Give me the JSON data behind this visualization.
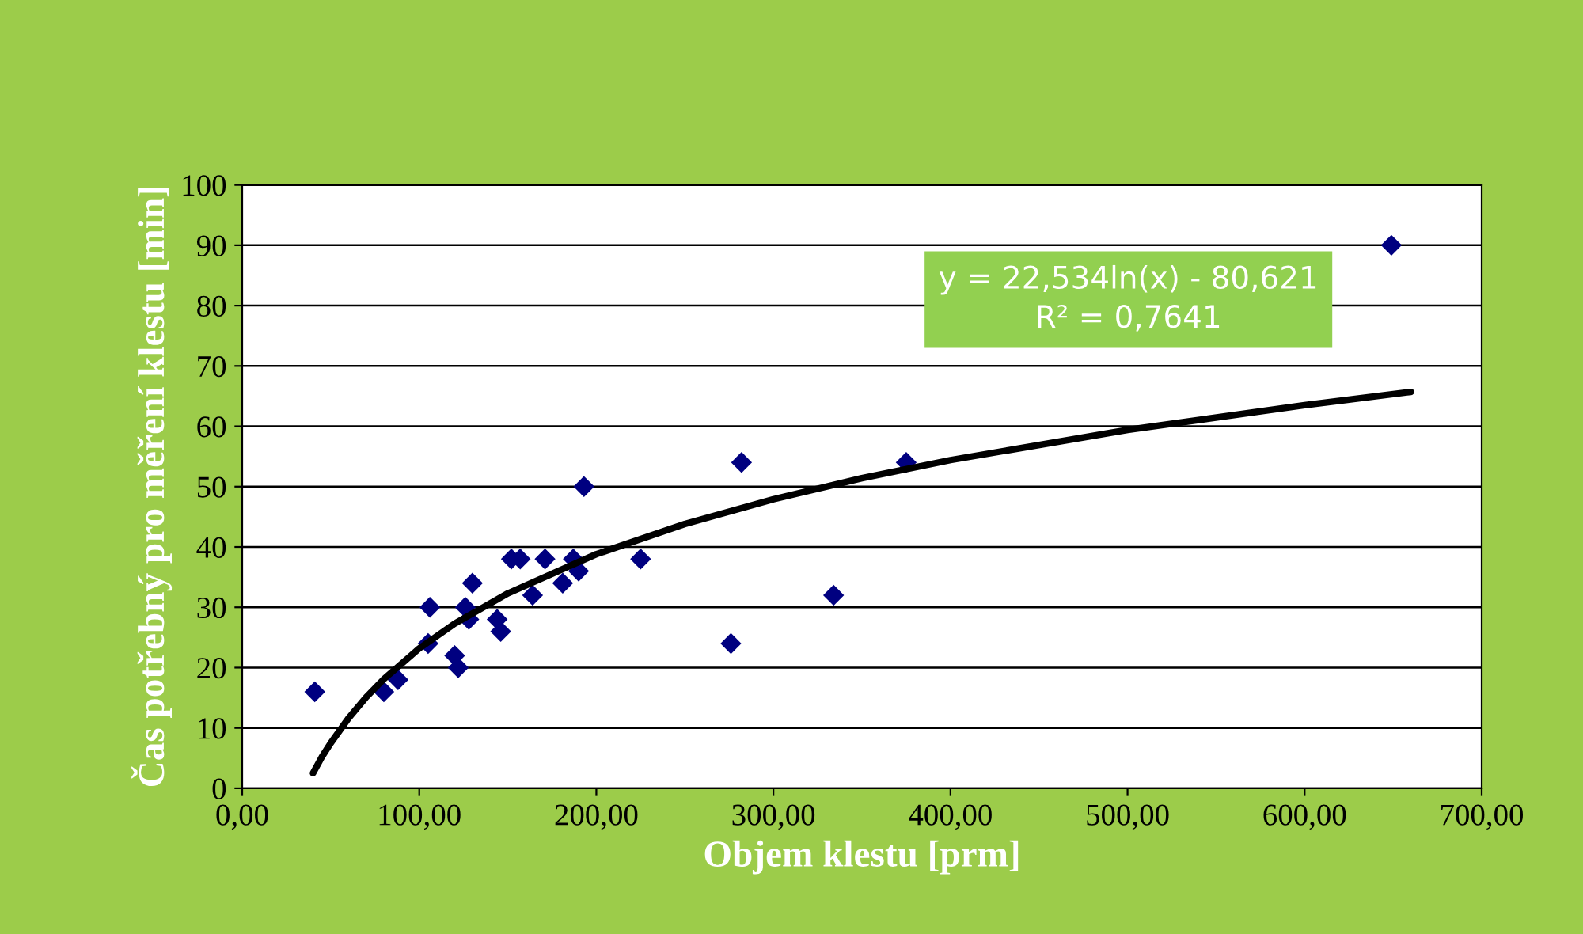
{
  "chart_data": {
    "type": "scatter",
    "xlabel": "Objem klestu [prm]",
    "ylabel": "Čas potřebný pro měření klestu [min]",
    "series": [
      {
        "color": "#000080",
        "marker": "diamond",
        "x": [
          41,
          80,
          88,
          105,
          106,
          120,
          122,
          126,
          128,
          130,
          144,
          146,
          152,
          157,
          164,
          171,
          181,
          187,
          190,
          193,
          225,
          276,
          282,
          334,
          375,
          649
        ],
        "values": [
          16,
          16,
          18,
          24,
          30,
          22,
          20,
          30,
          28,
          34,
          28,
          26,
          38,
          38,
          32,
          38,
          34,
          38,
          36,
          50,
          38,
          24,
          54,
          32,
          54,
          90
        ]
      },
      {
        "type": "line",
        "color": "#000000",
        "marker": "none",
        "line_style": "solid",
        "x": [
          40,
          45,
          50,
          60,
          70,
          80,
          100,
          120,
          150,
          200,
          250,
          300,
          350,
          400,
          500,
          600,
          660
        ],
        "values": [
          2.5,
          5.2,
          7.5,
          11.6,
          15.1,
          18.1,
          23.2,
          27.3,
          32.3,
          38.8,
          43.8,
          47.9,
          51.4,
          54.4,
          59.4,
          63.5,
          65.7
        ]
      }
    ],
    "annotations": [
      "y = 22,534ln(x) - 80,621\nR² = 0,7641"
    ],
    "xlim": [
      0,
      700
    ],
    "ylim": [
      0,
      100
    ],
    "xticks": [
      {
        "value": 0,
        "label": "0,00"
      },
      {
        "value": 100,
        "label": "100,00"
      },
      {
        "value": 200,
        "label": "200,00"
      },
      {
        "value": 300,
        "label": "300,00"
      },
      {
        "value": 400,
        "label": "400,00"
      },
      {
        "value": 500,
        "label": "500,00"
      },
      {
        "value": 600,
        "label": "600,00"
      },
      {
        "value": 700,
        "label": "700,00"
      }
    ],
    "yticks": [
      0,
      10,
      20,
      30,
      40,
      50,
      60,
      70,
      80,
      90,
      100
    ],
    "grid": "y"
  }
}
